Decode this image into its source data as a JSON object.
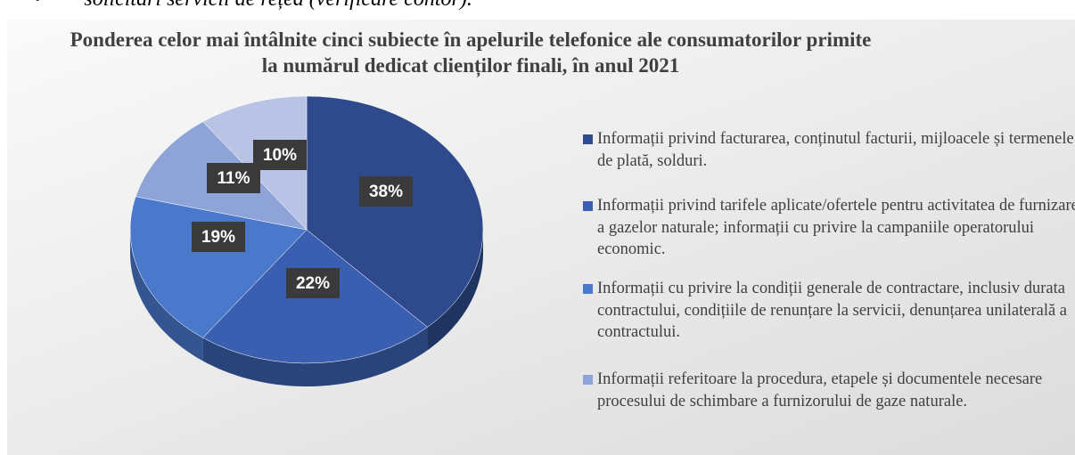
{
  "document_text": "solicitări servicii de rețea (verificare contor).",
  "chart_data": {
    "type": "pie",
    "title": "Ponderea celor mai întâlnite cinci subiecte în apelurile telefonice ale consumatorilor primite la numărul dedicat clienților finali, în anul 2021",
    "categories": [
      "Informații privind facturarea, conținutul facturii, mijloacele și termenele de plată, solduri.",
      "Informații privind tarifele aplicate/ofertele pentru activitatea de furnizare a gazelor naturale; informații cu privire la campaniile operatorului economic.",
      "Informații cu privire la  condiții generale de contractare, inclusiv durata contractului, condițiile de renunțare la servicii, denunțarea unilaterală a contractului.",
      "Informații referitoare la procedura, etapele și documentele necesare procesului de schimbare a furnizorului de gaze naturale.",
      null
    ],
    "values": [
      38,
      22,
      19,
      11,
      10
    ],
    "value_labels": [
      "38%",
      "22%",
      "19%",
      "11%",
      "10%"
    ],
    "colors": [
      "#2e4a8c",
      "#3a5fb0",
      "#4a79cc",
      "#8ea3d8",
      "#b8c3e6"
    ]
  }
}
